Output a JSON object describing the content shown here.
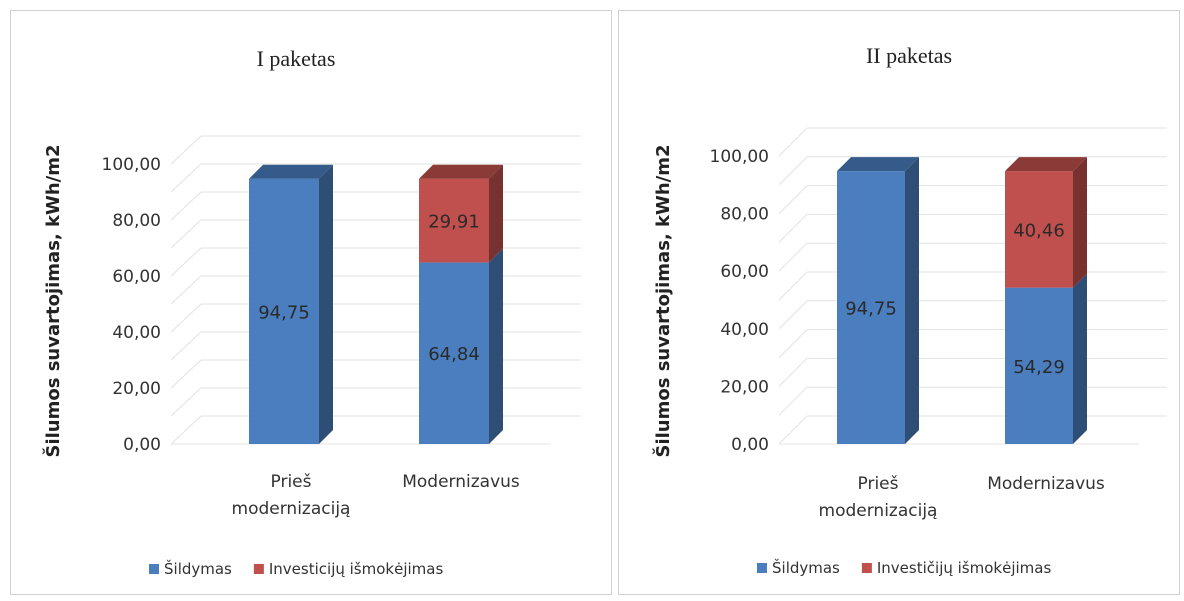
{
  "chart_data": [
    {
      "type": "bar",
      "stacked": true,
      "title": "I paketas",
      "ylabel": "Šilumos suvartojimas,  kWh/m2",
      "ylim": [
        0,
        100
      ],
      "yticks": [
        "0,00",
        "20,00",
        "40,00",
        "60,00",
        "80,00",
        "100,00"
      ],
      "categories": [
        [
          "Prieš",
          "modernizaciją"
        ],
        [
          "Modernizavus"
        ]
      ],
      "series": [
        {
          "name": "Šildymas",
          "values": [
            94.75,
            64.84
          ],
          "labels": [
            "94,75",
            "64,84"
          ],
          "color": "#4a7ebf"
        },
        {
          "name": "Investicijų išmokėjimas",
          "values": [
            0,
            29.91
          ],
          "labels": [
            "",
            "29,91"
          ],
          "color": "#c0504d"
        }
      ],
      "legend_position": "bottom",
      "grid": true
    },
    {
      "type": "bar",
      "stacked": true,
      "title": "II paketas",
      "ylabel": "Šilumos suvartojimas,  kWh/m2",
      "ylim": [
        0,
        100
      ],
      "yticks": [
        "0,00",
        "20,00",
        "40,00",
        "60,00",
        "80,00",
        "100,00"
      ],
      "categories": [
        [
          "Prieš",
          "modernizaciją"
        ],
        [
          "Modernizavus"
        ]
      ],
      "series": [
        {
          "name": "Šildymas",
          "values": [
            94.75,
            54.29
          ],
          "labels": [
            "94,75",
            "54,29"
          ],
          "color": "#4a7ebf"
        },
        {
          "name": "Investičijų išmokėjimas",
          "values": [
            0,
            40.46
          ],
          "labels": [
            "",
            "40,46"
          ],
          "color": "#c0504d"
        }
      ],
      "legend_position": "bottom",
      "grid": true
    }
  ]
}
